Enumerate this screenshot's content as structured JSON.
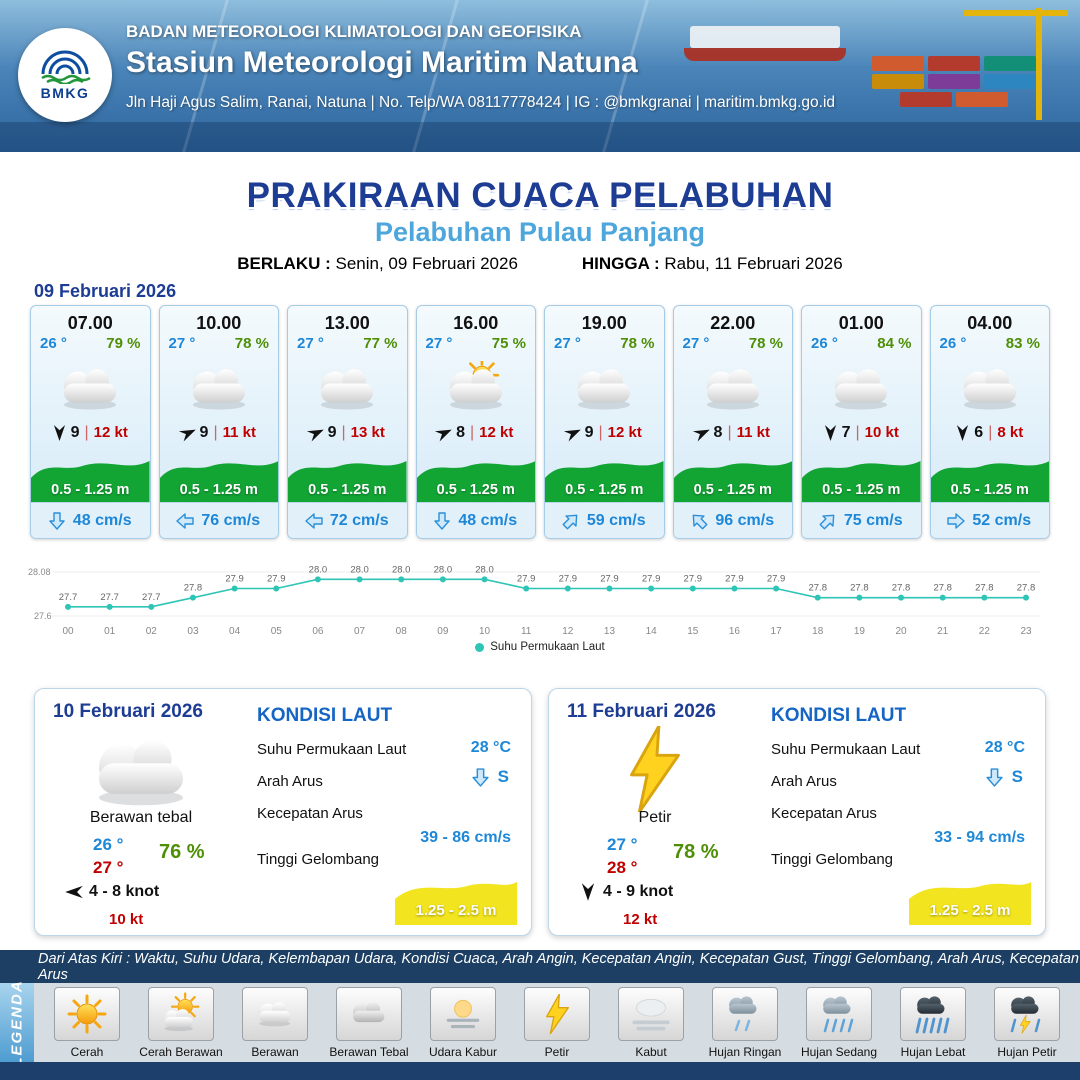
{
  "header": {
    "agency_line": "BADAN METEOROLOGI KLIMATOLOGI DAN GEOFISIKA",
    "station_name": "Stasiun Meteorologi Maritim Natuna",
    "contact_line": "Jln Haji Agus Salim, Ranai, Natuna  | No. Telp/WA 08117778424 | IG : @bmkgranai | maritim.bmkg.go.id",
    "logo_text": "BMKG"
  },
  "title_block": {
    "main_title": "PRAKIRAAN CUACA PELABUHAN",
    "port_name": "Pelabuhan Pulau Panjang",
    "berlaku_label": "BERLAKU :",
    "berlaku_value": "Senin, 09 Februari 2026",
    "hingga_label": "HINGGA :",
    "hingga_value": "Rabu, 11 Februari 2026",
    "forecast_date": "09 Februari 2026"
  },
  "hour_cards": [
    {
      "time": "07.00",
      "temp": "26 °",
      "humidity": "79 %",
      "icon": "cloudy",
      "wind_dir_deg": 180,
      "wind_speed": "9",
      "wind_kt": "12 kt",
      "wave": "0.5 - 1.25 m",
      "current_dir_deg": 180,
      "current": "48 cm/s"
    },
    {
      "time": "10.00",
      "temp": "27 °",
      "humidity": "78 %",
      "icon": "cloudy",
      "wind_dir_deg": 65,
      "wind_speed": "9",
      "wind_kt": "11 kt",
      "wave": "0.5 - 1.25 m",
      "current_dir_deg": 270,
      "current": "76 cm/s"
    },
    {
      "time": "13.00",
      "temp": "27 °",
      "humidity": "77 %",
      "icon": "cloudy",
      "wind_dir_deg": 65,
      "wind_speed": "9",
      "wind_kt": "13 kt",
      "wave": "0.5 - 1.25 m",
      "current_dir_deg": 270,
      "current": "72 cm/s"
    },
    {
      "time": "16.00",
      "temp": "27 °",
      "humidity": "75 %",
      "icon": "partly-cloudy",
      "wind_dir_deg": 65,
      "wind_speed": "8",
      "wind_kt": "12 kt",
      "wave": "0.5 - 1.25 m",
      "current_dir_deg": 180,
      "current": "48 cm/s"
    },
    {
      "time": "19.00",
      "temp": "27 °",
      "humidity": "78 %",
      "icon": "cloudy",
      "wind_dir_deg": 65,
      "wind_speed": "9",
      "wind_kt": "12 kt",
      "wave": "0.5 - 1.25 m",
      "current_dir_deg": 45,
      "current": "59 cm/s"
    },
    {
      "time": "22.00",
      "temp": "27 °",
      "humidity": "78 %",
      "icon": "cloudy",
      "wind_dir_deg": 65,
      "wind_speed": "8",
      "wind_kt": "11 kt",
      "wave": "0.5 - 1.25 m",
      "current_dir_deg": 315,
      "current": "96 cm/s"
    },
    {
      "time": "01.00",
      "temp": "26 °",
      "humidity": "84 %",
      "icon": "cloudy",
      "wind_dir_deg": 180,
      "wind_speed": "7",
      "wind_kt": "10 kt",
      "wave": "0.5 - 1.25 m",
      "current_dir_deg": 45,
      "current": "75 cm/s"
    },
    {
      "time": "04.00",
      "temp": "26 °",
      "humidity": "83 %",
      "icon": "cloudy",
      "wind_dir_deg": 180,
      "wind_speed": "6",
      "wind_kt": "8 kt",
      "wave": "0.5 - 1.25 m",
      "current_dir_deg": 90,
      "current": "52 cm/s"
    }
  ],
  "chart_data": {
    "type": "line",
    "x": [
      "00",
      "01",
      "02",
      "03",
      "04",
      "05",
      "06",
      "07",
      "08",
      "09",
      "10",
      "11",
      "12",
      "13",
      "14",
      "15",
      "16",
      "17",
      "18",
      "19",
      "20",
      "21",
      "22",
      "23"
    ],
    "values": [
      27.7,
      27.7,
      27.7,
      27.8,
      27.9,
      27.9,
      28.0,
      28.0,
      28.0,
      28.0,
      28.0,
      27.9,
      27.9,
      27.9,
      27.9,
      27.9,
      27.9,
      27.9,
      27.8,
      27.8,
      27.8,
      27.8,
      27.8,
      27.8
    ],
    "ylim": [
      27.6,
      28.08
    ],
    "y_axis_labels": [
      "28.08",
      "27.6"
    ],
    "legend": "Suhu Permukaan Laut",
    "line_color": "#2ec4b6",
    "xlabel": "",
    "ylabel": ""
  },
  "daily_cards": [
    {
      "date": "10 Februari 2026",
      "icon": "cloudy",
      "condition": "Berawan tebal",
      "temp_min": "26 °",
      "temp_max": "27 °",
      "humidity": "76 %",
      "wind_dir_deg": 270,
      "wind_range": "4  - 8 knot",
      "wind_gust": "10 kt",
      "sea": {
        "title": "KONDISI LAUT",
        "sst_label": "Suhu Permukaan Laut",
        "sst_value": "28 °C",
        "current_dir_label": "Arah Arus",
        "current_dir_deg": 180,
        "current_dir_value": "S",
        "current_speed_label": "Kecepatan Arus",
        "current_speed_value": "39 - 86 cm/s",
        "wave_label": "Tinggi Gelombang",
        "wave_value": "1.25 - 2.5 m"
      }
    },
    {
      "date": "11 Februari 2026",
      "icon": "lightning",
      "condition": "Petir",
      "temp_min": "27 °",
      "temp_max": "28 °",
      "humidity": "78 %",
      "wind_dir_deg": 180,
      "wind_range": "4  - 9 knot",
      "wind_gust": "12 kt",
      "sea": {
        "title": "KONDISI LAUT",
        "sst_label": "Suhu Permukaan Laut",
        "sst_value": "28 °C",
        "current_dir_label": "Arah Arus",
        "current_dir_deg": 180,
        "current_dir_value": "S",
        "current_speed_label": "Kecepatan Arus",
        "current_speed_value": "33 - 94 cm/s",
        "wave_label": "Tinggi Gelombang",
        "wave_value": "1.25 - 2.5 m"
      }
    }
  ],
  "legend_bar_text": "Dari Atas Kiri : Waktu, Suhu Udara, Kelembapan Udara, Kondisi Cuaca, Arah Angin, Kecepatan Angin, Kecepatan Gust, Tinggi Gelombang, Arah Arus, Kecepatan Arus",
  "legend": {
    "title": "LEGENDA",
    "items": [
      {
        "label": "Cerah",
        "icon": "sun"
      },
      {
        "label": "Cerah Berawan",
        "icon": "sun-cloud"
      },
      {
        "label": "Berawan",
        "icon": "cloud"
      },
      {
        "label": "Berawan Tebal",
        "icon": "cloud-thick"
      },
      {
        "label": "Udara Kabur",
        "icon": "haze"
      },
      {
        "label": "Petir",
        "icon": "lightning"
      },
      {
        "label": "Kabut",
        "icon": "fog"
      },
      {
        "label": "Hujan Ringan",
        "icon": "rain-light"
      },
      {
        "label": "Hujan Sedang",
        "icon": "rain-medium"
      },
      {
        "label": "Hujan Lebat",
        "icon": "rain-heavy"
      },
      {
        "label": "Hujan Petir",
        "icon": "storm"
      }
    ]
  },
  "colors": {
    "accent_blue": "#1d87d8",
    "navy": "#1d3c94",
    "humidity_green": "#4e8f06",
    "alert_red": "#c00000",
    "wave_green": "#12a534",
    "wave_yellow": "#f2e41e",
    "sst_line": "#2ec4b6",
    "bar_navy": "#1c3f63"
  }
}
